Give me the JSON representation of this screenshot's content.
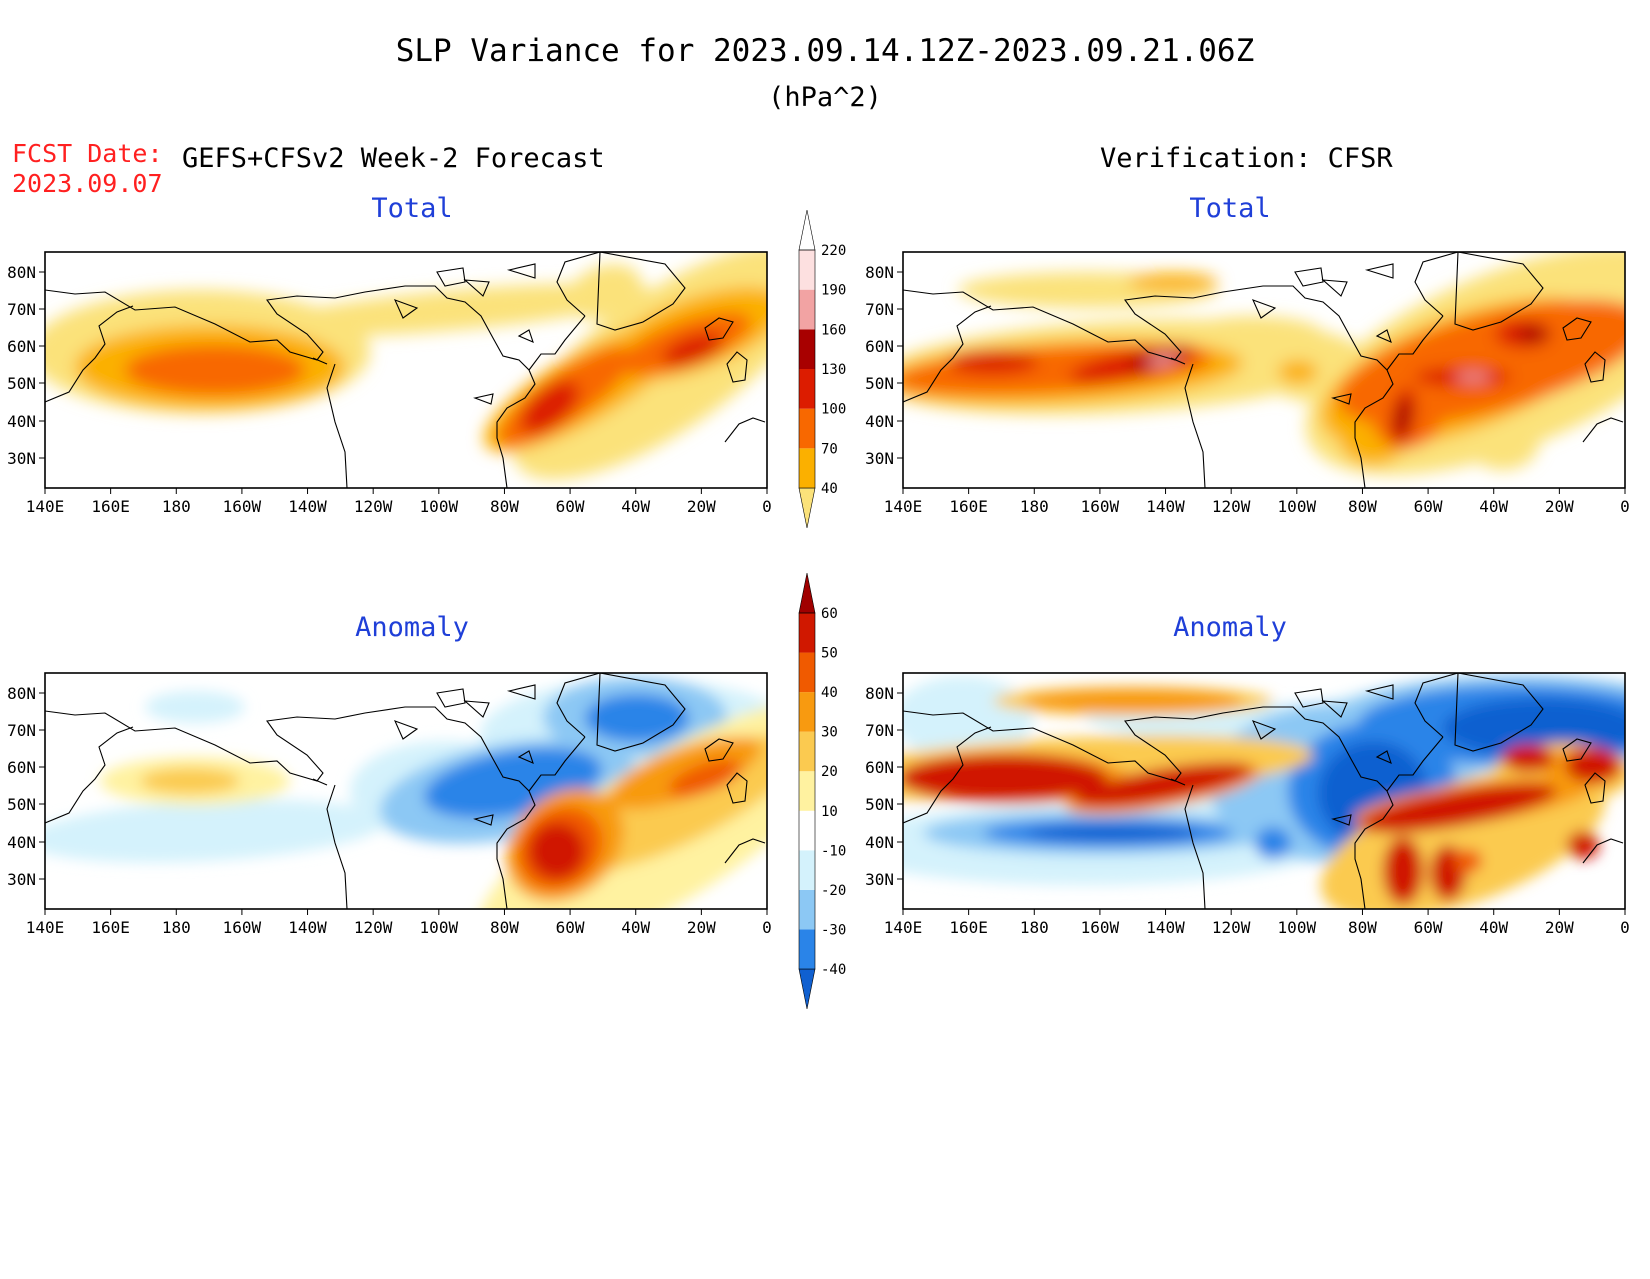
{
  "header": {
    "title": "SLP Variance for 2023.09.14.12Z-2023.09.21.06Z",
    "units": "(hPa^2)",
    "fcst_label": "FCST Date:",
    "fcst_date": "2023.09.07",
    "forecast_title": "GEFS+CFSv2 Week-2 Forecast",
    "verification_title": "Verification: CFSR"
  },
  "panel_titles": {
    "total": "Total",
    "anomaly": "Anomaly"
  },
  "axes": {
    "lat_labels": [
      "80N",
      "70N",
      "60N",
      "50N",
      "40N",
      "30N"
    ],
    "lon_labels": [
      "140E",
      "160E",
      "180",
      "160W",
      "140W",
      "120W",
      "100W",
      "80W",
      "60W",
      "40W",
      "20W",
      "0"
    ]
  },
  "colorbars": {
    "total": {
      "levels": [
        "40",
        "70",
        "100",
        "130",
        "160",
        "190",
        "220"
      ],
      "colors": [
        "#fbe27a",
        "#fbb000",
        "#f86800",
        "#dc1c00",
        "#a80000",
        "#f2a3a3",
        "#fde0e0",
        "#ffffff"
      ]
    },
    "anomaly": {
      "levels": [
        "-40",
        "-30",
        "-20",
        "-10",
        "10",
        "20",
        "30",
        "40",
        "50",
        "60"
      ],
      "colors": [
        "#1060d0",
        "#2a84e8",
        "#8cc8f4",
        "#d4f2fc",
        "#ffffff",
        "#fff2a0",
        "#fbca50",
        "#f89a10",
        "#f05a00",
        "#d01800",
        "#a00000"
      ]
    }
  },
  "colors": {
    "title_text": "#000000",
    "fcst_text": "#ff2020",
    "panel_title_text": "#1f3fd8"
  }
}
